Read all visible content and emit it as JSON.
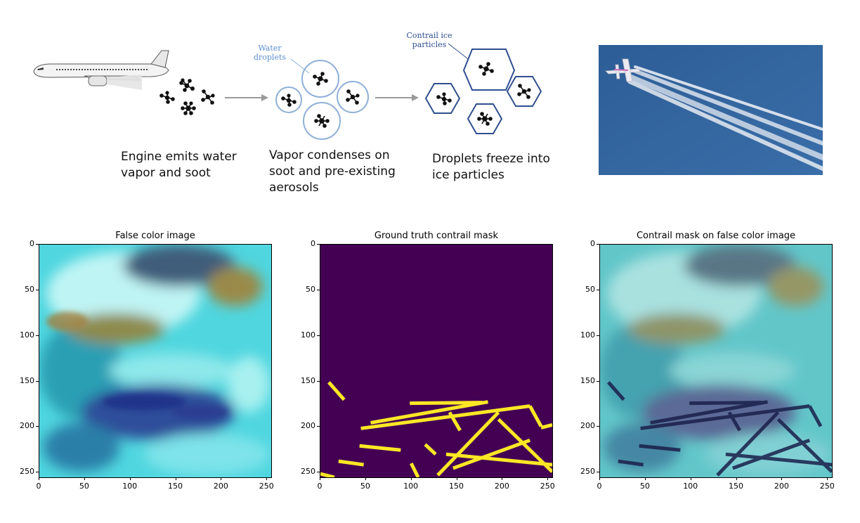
{
  "schematic": {
    "captions": [
      "Engine emits water\nvapor and soot",
      "Vapor condenses on\nsoot and pre-existing\naerosols",
      "Droplets freeze into\nice particles"
    ],
    "water_label": "Water\ndroplets",
    "ice_label": "Contrail ice\nparticles",
    "colors": {
      "droplet": "#8fb0d8",
      "ice": "#2f4f8f",
      "water_text": "#5b8ed0",
      "ice_text": "#2f4f8f",
      "arrow": "#9a9a9a"
    }
  },
  "panels": [
    {
      "title": "False color image"
    },
    {
      "title": "Ground truth contrail mask"
    },
    {
      "title": "Contrail mask on false color image"
    }
  ],
  "axes": {
    "y_ticks": [
      "0",
      "50",
      "100",
      "150",
      "200",
      "250"
    ],
    "x_ticks": [
      "0",
      "50",
      "100",
      "150",
      "200",
      "250"
    ]
  },
  "colors": {
    "mask_bg": "#440154",
    "mask_fg": "#fde725",
    "sky": "#2f5f98",
    "overlay_line": "#1a1f4a"
  }
}
